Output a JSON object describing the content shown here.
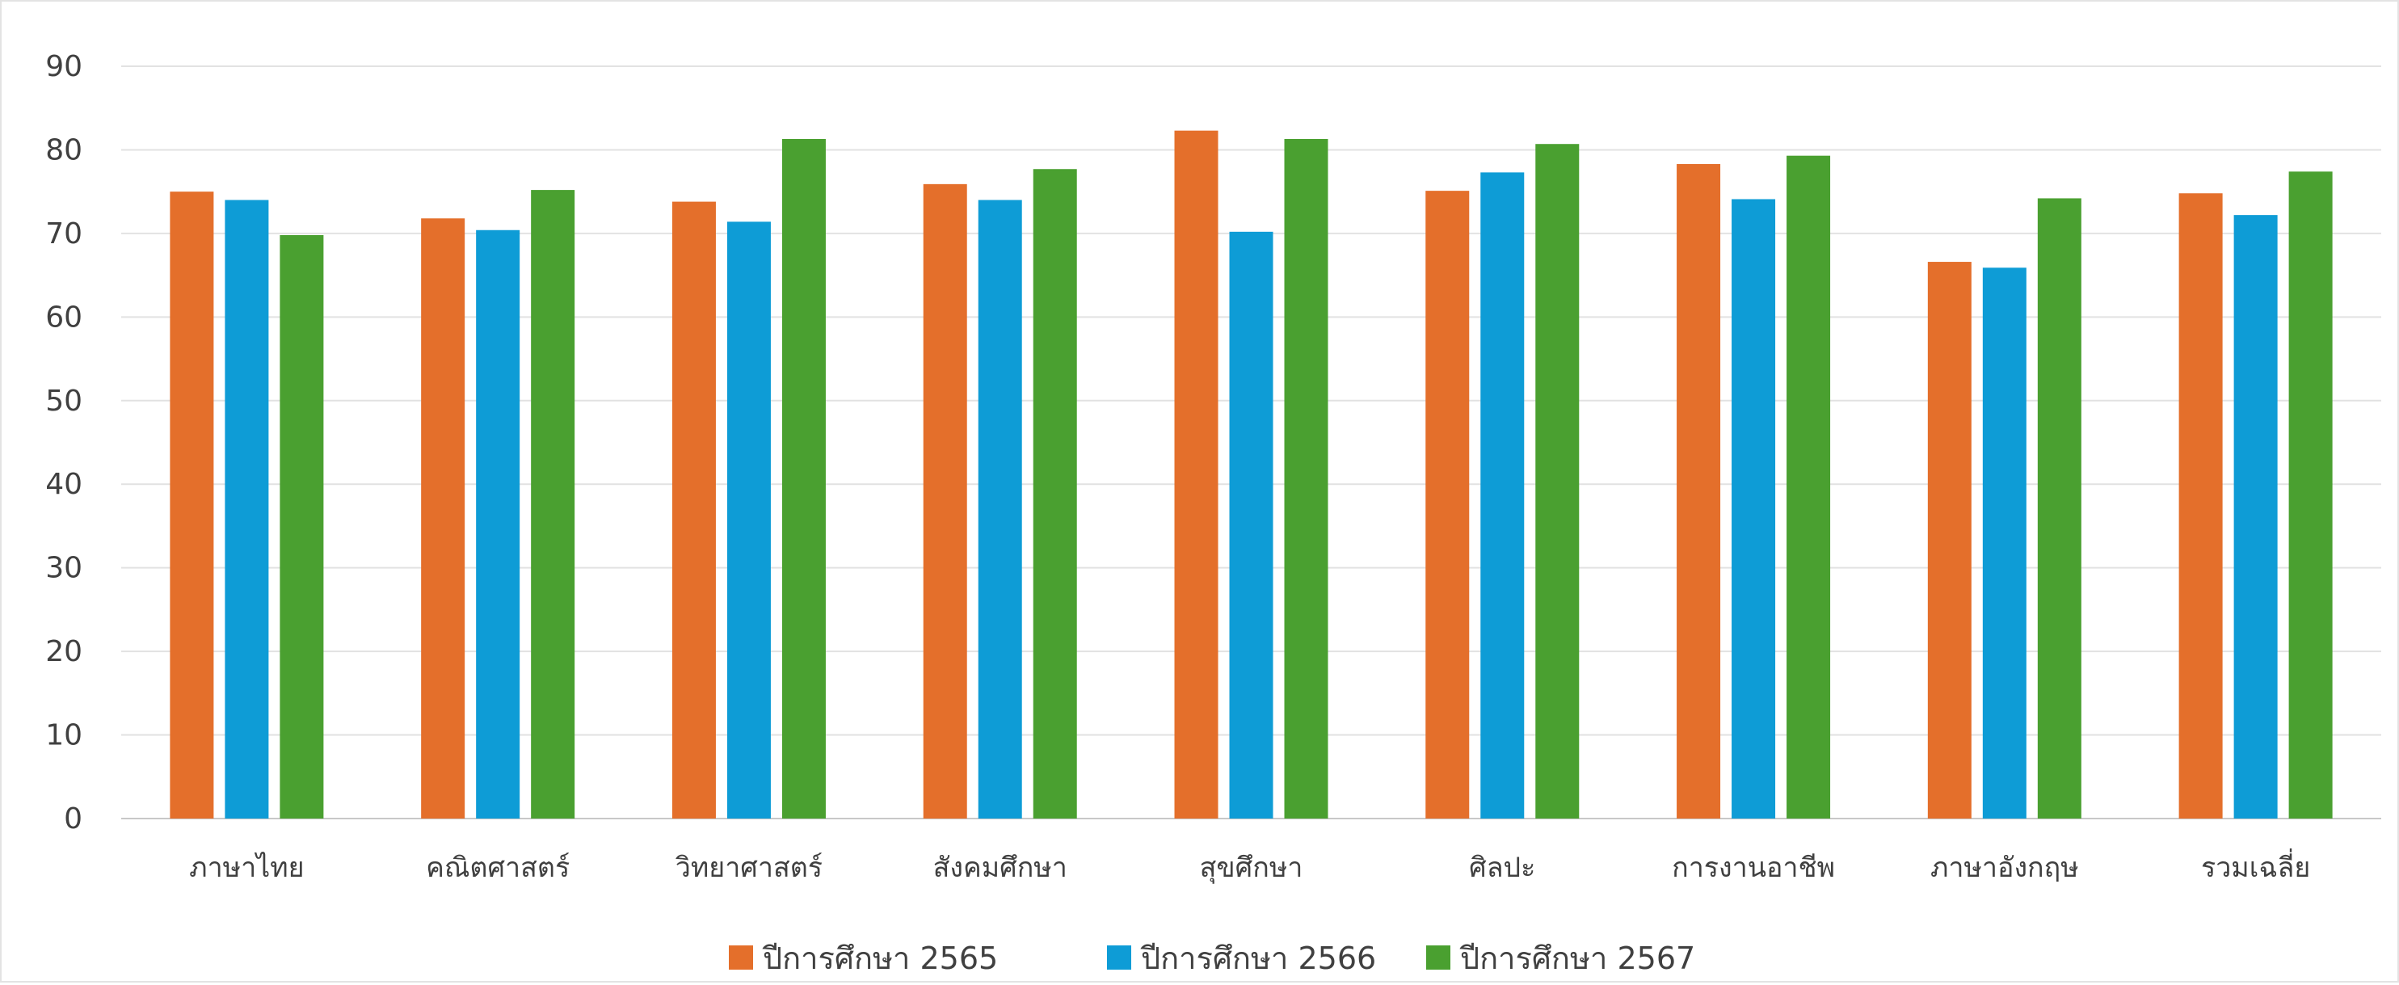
{
  "chart_data": {
    "type": "bar",
    "title": "",
    "xlabel": "",
    "ylabel": "",
    "ylim": [
      0,
      90
    ],
    "yticks": [
      0,
      10,
      20,
      30,
      40,
      50,
      60,
      70,
      80,
      90
    ],
    "grid": true,
    "legend_position": "bottom-center",
    "categories": [
      "ภาษาไทย",
      "คณิตศาสตร์",
      "วิทยาศาสตร์",
      "สังคมศึกษา",
      "สุขศึกษา",
      "ศิลปะ",
      "การงานอาชีพ",
      "ภาษาอังกฤษ",
      "รวมเฉลี่ย"
    ],
    "series": [
      {
        "name": "ปีการศึกษา 2565",
        "color": "#e46f2b",
        "values": [
          75.0,
          71.8,
          73.8,
          75.9,
          82.3,
          75.1,
          78.3,
          66.6,
          74.8
        ]
      },
      {
        "name": "ปีการศึกษา 2566",
        "color": "#0e9cd6",
        "values": [
          74.0,
          70.4,
          71.4,
          74.0,
          70.2,
          77.3,
          74.1,
          65.9,
          72.2
        ]
      },
      {
        "name": "ปีการศึกษา 2567",
        "color": "#4aa030",
        "values": [
          69.8,
          75.2,
          81.3,
          77.7,
          81.3,
          80.7,
          79.3,
          74.2,
          77.4
        ]
      }
    ]
  }
}
